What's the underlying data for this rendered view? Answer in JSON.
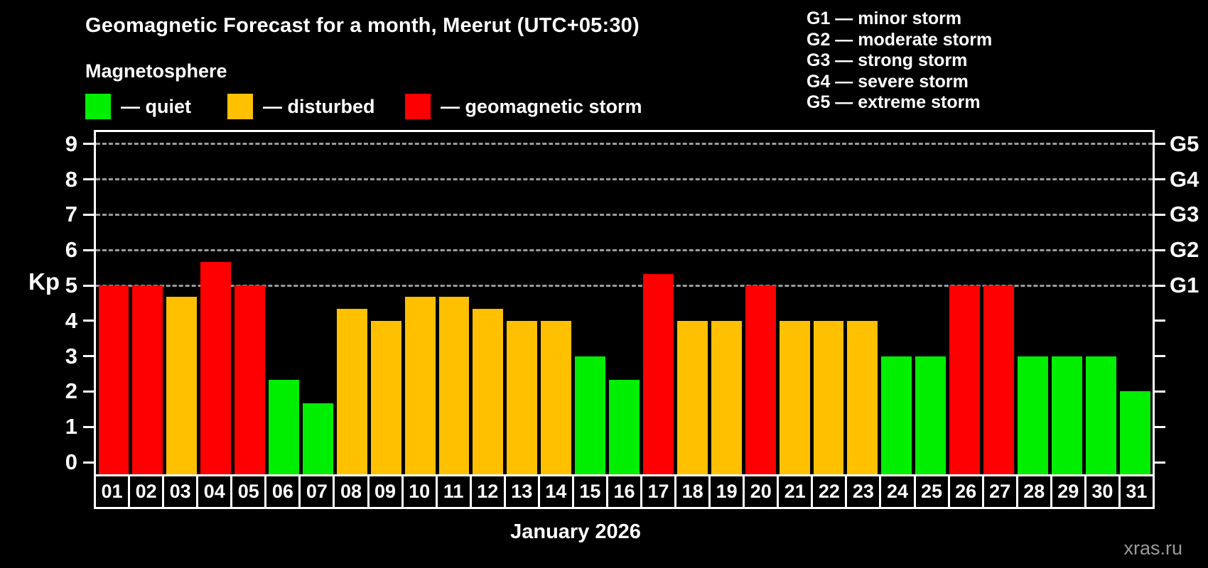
{
  "title": "Geomagnetic Forecast for a month, Meerut (UTC+05:30)",
  "subtitle": "Magnetosphere",
  "legend": {
    "items": [
      {
        "key": "quiet",
        "label": "— quiet",
        "color": "#00ee00"
      },
      {
        "key": "disturbed",
        "label": "— disturbed",
        "color": "#ffc000"
      },
      {
        "key": "storm",
        "label": "— geomagnetic storm",
        "color": "#ff0000"
      }
    ]
  },
  "g_legend": [
    "G1 — minor storm",
    "G2 — moderate storm",
    "G3 — strong storm",
    "G4 — severe storm",
    "G5 — extreme storm"
  ],
  "watermark": "xras.ru",
  "chart_data": {
    "type": "bar",
    "title": "Geomagnetic Forecast for a month, Meerut (UTC+05:30)",
    "xlabel": "January 2026",
    "ylabel": "Kp",
    "ylim": [
      0,
      9
    ],
    "y_ticks": [
      0,
      1,
      2,
      3,
      4,
      5,
      6,
      7,
      8,
      9
    ],
    "grid_levels": [
      5,
      6,
      7,
      8,
      9
    ],
    "grid_style": "dashed gray horizontal lines at storm levels",
    "legend_position": "top",
    "g_labels": [
      {
        "kp": 5,
        "label": "G1"
      },
      {
        "kp": 6,
        "label": "G2"
      },
      {
        "kp": 7,
        "label": "G3"
      },
      {
        "kp": 8,
        "label": "G4"
      },
      {
        "kp": 9,
        "label": "G5"
      }
    ],
    "categories": [
      "01",
      "02",
      "03",
      "04",
      "05",
      "06",
      "07",
      "08",
      "09",
      "10",
      "11",
      "12",
      "13",
      "14",
      "15",
      "16",
      "17",
      "18",
      "19",
      "20",
      "21",
      "22",
      "23",
      "24",
      "25",
      "26",
      "27",
      "28",
      "29",
      "30",
      "31"
    ],
    "values": [
      5,
      5,
      4.67,
      5.67,
      5,
      2.33,
      1.67,
      4.33,
      4,
      4.67,
      4.67,
      4.33,
      4,
      4,
      3,
      2.33,
      5.33,
      4,
      4,
      5,
      4,
      4,
      4,
      3,
      3,
      5,
      5,
      3,
      3,
      3,
      2
    ],
    "states": [
      "storm",
      "storm",
      "disturbed",
      "storm",
      "storm",
      "quiet",
      "quiet",
      "disturbed",
      "disturbed",
      "disturbed",
      "disturbed",
      "disturbed",
      "disturbed",
      "disturbed",
      "quiet",
      "quiet",
      "storm",
      "disturbed",
      "disturbed",
      "storm",
      "disturbed",
      "disturbed",
      "disturbed",
      "quiet",
      "quiet",
      "storm",
      "storm",
      "quiet",
      "quiet",
      "quiet",
      "quiet"
    ]
  }
}
